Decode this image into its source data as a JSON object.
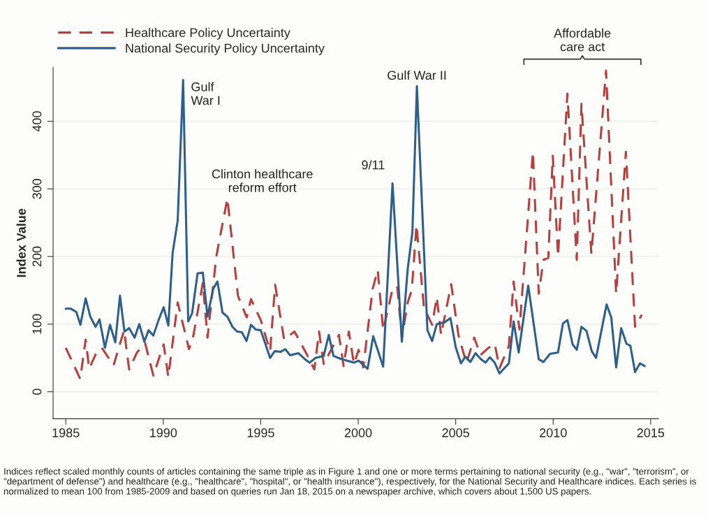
{
  "chart_data": {
    "type": "line",
    "ylabel": "Index Value",
    "xlim": [
      1984.35,
      2015.4
    ],
    "ylim": [
      -40,
      480
    ],
    "xticks": [
      1985,
      1990,
      1995,
      2000,
      2005,
      2010,
      2015
    ],
    "yticks": [
      0,
      100,
      200,
      300,
      400
    ],
    "grid": "y",
    "legend": "top left",
    "marker": "none",
    "series": [
      {
        "name": "Healthcare Policy Uncertainty",
        "color": "#b5403f",
        "line_style": "dashed",
        "x": [
          1985.0,
          1985.74,
          1986.02,
          1986.2,
          1986.56,
          1986.85,
          1987.45,
          1987.99,
          1988.25,
          1988.65,
          1989.07,
          1989.49,
          1990.02,
          1990.26,
          1990.74,
          1991.32,
          1991.52,
          1992.03,
          1992.27,
          1992.72,
          1993.29,
          1993.83,
          1994.28,
          1994.5,
          1995.0,
          1995.48,
          1995.74,
          1996.2,
          1996.73,
          1997.33,
          1997.75,
          1997.99,
          1998.23,
          1999.01,
          1999.25,
          1999.52,
          1999.78,
          2000.02,
          2000.26,
          2000.74,
          2001.0,
          2001.28,
          2001.76,
          2002.0,
          2002.24,
          2002.54,
          2002.75,
          2002.99,
          2003.37,
          2003.79,
          2004.03,
          2004.25,
          2004.77,
          2005.14,
          2005.55,
          2005.95,
          2006.27,
          2006.64,
          2007.0,
          2007.25,
          2007.73,
          2007.97,
          2008.27,
          2008.96,
          2009.26,
          2009.5,
          2009.75,
          2009.98,
          2010.25,
          2010.73,
          2011.21,
          2011.45,
          2011.96,
          2012.71,
          2013.23,
          2013.73,
          2014.2,
          2014.55
        ],
        "values": [
          65,
          19,
          77,
          34,
          57,
          65,
          39,
          91,
          33,
          58,
          72,
          24,
          70,
          22,
          132,
          63,
          79,
          161,
          80,
          200,
          286,
          142,
          110,
          137,
          106,
          60,
          158,
          77,
          89,
          57,
          33,
          89,
          41,
          84,
          38,
          89,
          41,
          62,
          36,
          152,
          180,
          91,
          152,
          156,
          80,
          132,
          151,
          247,
          125,
          99,
          140,
          84,
          159,
          84,
          42,
          80,
          54,
          64,
          71,
          35,
          68,
          163,
          92,
          355,
          145,
          195,
          198,
          349,
          200,
          441,
          195,
          426,
          204,
          475,
          145,
          355,
          96,
          114
        ]
      },
      {
        "name": "National Security Policy Uncertainty",
        "color": "#2e5f8a",
        "line_style": "solid",
        "x": [
          1985.0,
          1985.24,
          1985.54,
          1985.75,
          1986.02,
          1986.26,
          1986.53,
          1986.73,
          1987.01,
          1987.27,
          1987.54,
          1987.78,
          1988.01,
          1988.25,
          1988.53,
          1988.77,
          1989.03,
          1989.25,
          1989.49,
          1989.76,
          1990.02,
          1990.26,
          1990.48,
          1990.74,
          1991.02,
          1991.28,
          1991.48,
          1991.76,
          1992.03,
          1992.27,
          1992.56,
          1992.78,
          1993.04,
          1993.29,
          1993.55,
          1993.79,
          1994.03,
          1994.27,
          1994.5,
          1994.74,
          1995.0,
          1995.48,
          1995.72,
          1996.02,
          1996.26,
          1996.5,
          1996.94,
          1997.27,
          1997.51,
          1997.81,
          1998.23,
          1998.49,
          1998.73,
          1999.07,
          1999.43,
          1999.78,
          2000.02,
          2000.48,
          2000.77,
          2001.28,
          2001.76,
          2002.24,
          2002.54,
          2002.78,
          2003.01,
          2003.55,
          2003.79,
          2004.03,
          2004.45,
          2004.73,
          2005.0,
          2005.27,
          2005.5,
          2005.75,
          2006.02,
          2006.3,
          2006.53,
          2006.75,
          2007.0,
          2007.25,
          2007.73,
          2007.97,
          2008.23,
          2008.72,
          2009.26,
          2009.5,
          2009.84,
          2010.25,
          2010.5,
          2010.73,
          2011.0,
          2011.21,
          2011.45,
          2011.71,
          2011.98,
          2012.2,
          2012.74,
          2012.98,
          2013.23,
          2013.49,
          2013.76,
          2013.96,
          2014.2,
          2014.45,
          2014.69
        ],
        "values": [
          123,
          123,
          118,
          99,
          138,
          111,
          96,
          107,
          65,
          99,
          73,
          142,
          89,
          94,
          80,
          100,
          74,
          91,
          83,
          106,
          125,
          98,
          205,
          253,
          461,
          104,
          116,
          175,
          176,
          111,
          152,
          163,
          117,
          111,
          96,
          89,
          88,
          75,
          99,
          92,
          91,
          50,
          60,
          59,
          63,
          54,
          57,
          48,
          43,
          50,
          53,
          84,
          53,
          49,
          46,
          43,
          46,
          34,
          82,
          37,
          308,
          74,
          182,
          236,
          452,
          91,
          75,
          100,
          103,
          109,
          66,
          42,
          52,
          44,
          57,
          48,
          43,
          51,
          43,
          27,
          42,
          104,
          58,
          157,
          48,
          44,
          56,
          58,
          101,
          106,
          70,
          62,
          96,
          90,
          60,
          50,
          129,
          110,
          36,
          94,
          71,
          68,
          29,
          42,
          38
        ]
      }
    ],
    "annotations": [
      {
        "text": "Gulf\nWar I",
        "x": 1991.02,
        "y": 461
      },
      {
        "text": "Clinton healthcare\nreform effort",
        "x": 1993.29,
        "y": 286
      },
      {
        "text": "9/11",
        "x": 2001.76,
        "y": 308
      },
      {
        "text": "Gulf War II",
        "x": 2003.01,
        "y": 452
      },
      "Affordable\ncare act",
      "Indices reflect scaled monthly counts of articles containing the same triple as in Figure 1 and one or more terms pertaining to national security (e.g., \"war\", \"terrorism\", or \"department of defense\") and healthcare (e.g., \"healthcare\", \"hospital\", or \"health insurance\"), respectively, for the National Security and Healthcare indices. Each series is normalized to mean 100 from 1985-2009 and based on queries run Jan 18, 2015 on a newspaper archive, which covers about 1,500 US papers."
    ]
  }
}
